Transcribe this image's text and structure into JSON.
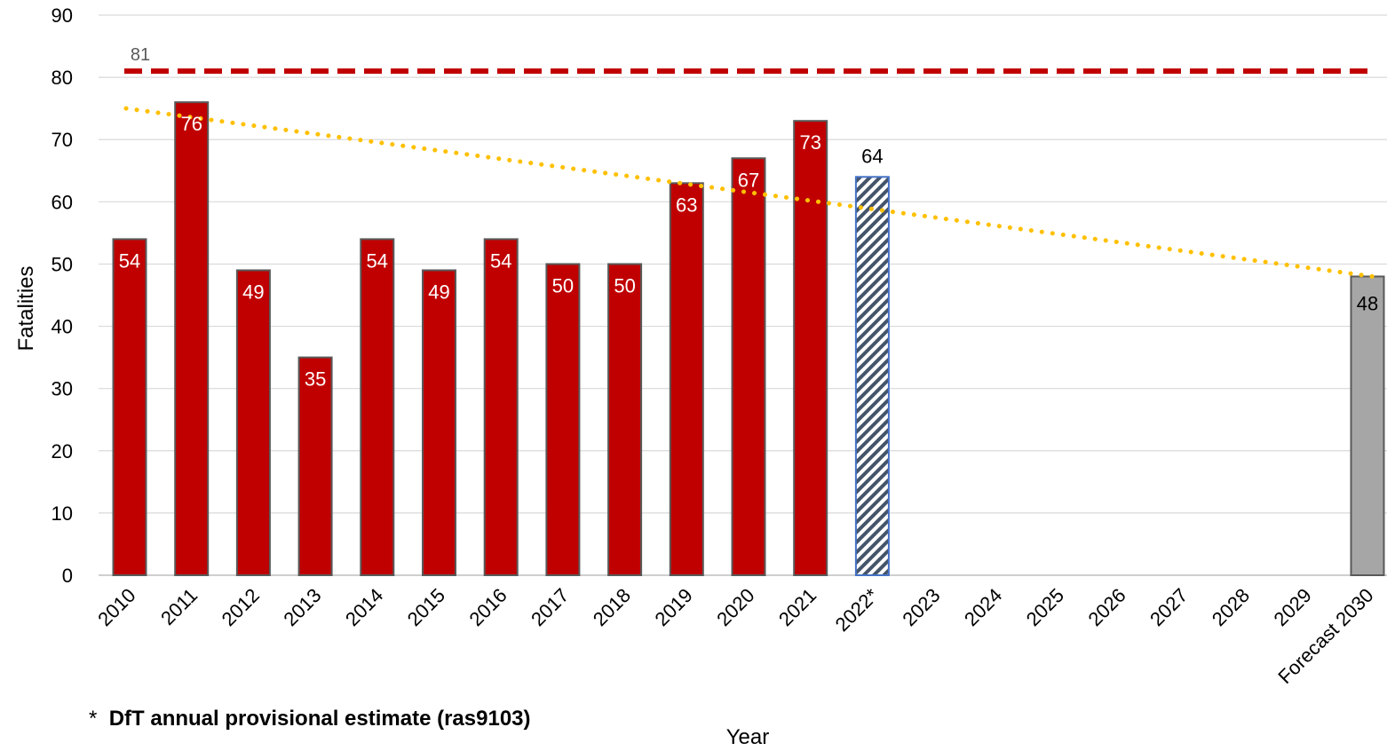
{
  "chart_data": {
    "type": "bar",
    "xlabel": "Year",
    "ylabel": "Fatalities",
    "ylim": [
      0,
      90
    ],
    "yticks": [
      0,
      10,
      20,
      30,
      40,
      50,
      60,
      70,
      80,
      90
    ],
    "grid": true,
    "categories": [
      "2010",
      "2011",
      "2012",
      "2013",
      "2014",
      "2015",
      "2016",
      "2017",
      "2018",
      "2019",
      "2020",
      "2021",
      "2022*",
      "2023",
      "2024",
      "2025",
      "2026",
      "2027",
      "2028",
      "2029",
      "Forecast 2030"
    ],
    "values": [
      54,
      76,
      49,
      35,
      54,
      49,
      54,
      50,
      50,
      63,
      67,
      73,
      64,
      null,
      null,
      null,
      null,
      null,
      null,
      null,
      48
    ],
    "bar_styles": [
      "actual",
      "actual",
      "actual",
      "actual",
      "actual",
      "actual",
      "actual",
      "actual",
      "actual",
      "actual",
      "actual",
      "actual",
      "provisional",
      "none",
      "none",
      "none",
      "none",
      "none",
      "none",
      "none",
      "forecast"
    ],
    "reference_line": {
      "value": 81,
      "label": "81",
      "style": "dashed",
      "color": "#c00000"
    },
    "trendline": {
      "style": "dotted",
      "color": "#ffc000",
      "start": 75,
      "end": 48
    },
    "colors": {
      "actual": "#c00000",
      "provisional_stroke": "#4472c4",
      "forecast": "#a6a6a6",
      "bar_outline": "#595959"
    },
    "footnote": {
      "marker": "*",
      "text": "DfT annual provisional estimate (ras9103)"
    }
  }
}
